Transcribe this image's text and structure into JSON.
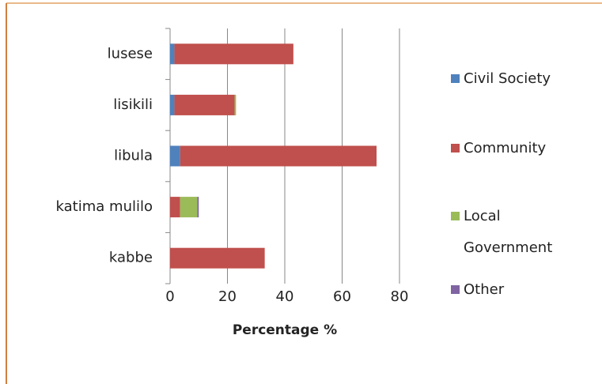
{
  "chart_data": {
    "type": "stacked_bar_horizontal",
    "xlabel": "Percentage %",
    "categories": [
      "lusese",
      "lisikili",
      "libula",
      "katima mulilo",
      "kabbe"
    ],
    "series": [
      {
        "name": "Civil Society",
        "color": "#4f81bd",
        "values": [
          1.5,
          1.5,
          3.5,
          0,
          0
        ]
      },
      {
        "name": "Community",
        "color": "#c0504d",
        "values": [
          41.5,
          21,
          68.5,
          3.5,
          33
        ]
      },
      {
        "name": "Local Government",
        "color": "#9bbb59",
        "values": [
          0,
          0.5,
          0,
          6,
          0
        ]
      },
      {
        "name": "Other",
        "color": "#8064a2",
        "values": [
          0,
          0,
          0,
          0.5,
          0
        ]
      }
    ],
    "xlim": [
      0,
      80
    ],
    "xticks": [
      0,
      20,
      40,
      60,
      80
    ],
    "grid": true,
    "legend": "right"
  }
}
